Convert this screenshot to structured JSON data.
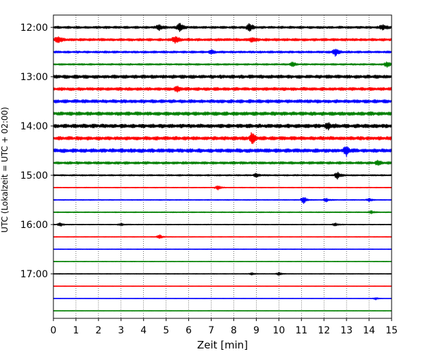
{
  "chart_data": {
    "type": "line",
    "title": "",
    "xlabel": "Zeit  [min]",
    "ylabel": "UTC (Lokalzeit = UTC + 02:00)",
    "xlim": [
      0,
      15
    ],
    "x_ticks": [
      "0",
      "1",
      "2",
      "3",
      "4",
      "5",
      "6",
      "7",
      "8",
      "9",
      "10",
      "11",
      "12",
      "13",
      "14",
      "15"
    ],
    "y_ticks": [
      "12:00",
      "13:00",
      "14:00",
      "15:00",
      "16:00",
      "17:00"
    ],
    "grid": "vertical dotted",
    "trace_interval_min": 15,
    "colors": [
      "#000000",
      "#ff0000",
      "#0000ff",
      "#008000"
    ],
    "traces": [
      {
        "start": "12:00",
        "color": "#000000",
        "amp": 0.2,
        "events": [
          {
            "t": 4.7,
            "a": 0.45
          },
          {
            "t": 5.6,
            "a": 0.65
          },
          {
            "t": 8.7,
            "a": 0.65
          },
          {
            "t": 14.6,
            "a": 0.4
          }
        ]
      },
      {
        "start": "12:15",
        "color": "#ff0000",
        "amp": 0.22,
        "events": [
          {
            "t": 0.2,
            "a": 0.5
          },
          {
            "t": 5.4,
            "a": 0.6
          },
          {
            "t": 8.8,
            "a": 0.35
          }
        ]
      },
      {
        "start": "12:30",
        "color": "#0000ff",
        "amp": 0.18,
        "events": [
          {
            "t": 7.0,
            "a": 0.3
          },
          {
            "t": 12.5,
            "a": 0.6
          }
        ]
      },
      {
        "start": "12:45",
        "color": "#008000",
        "amp": 0.14,
        "events": [
          {
            "t": 10.6,
            "a": 0.35
          },
          {
            "t": 14.8,
            "a": 0.45
          }
        ]
      },
      {
        "start": "13:00",
        "color": "#000000",
        "amp": 0.28,
        "events": []
      },
      {
        "start": "13:15",
        "color": "#ff0000",
        "amp": 0.26,
        "events": [
          {
            "t": 5.5,
            "a": 0.4
          }
        ]
      },
      {
        "start": "13:30",
        "color": "#0000ff",
        "amp": 0.28,
        "events": []
      },
      {
        "start": "13:45",
        "color": "#008000",
        "amp": 0.3,
        "events": []
      },
      {
        "start": "14:00",
        "color": "#000000",
        "amp": 0.32,
        "events": [
          {
            "t": 12.2,
            "a": 0.5
          }
        ]
      },
      {
        "start": "14:15",
        "color": "#ff0000",
        "amp": 0.3,
        "events": [
          {
            "t": 8.8,
            "a": 0.9
          }
        ]
      },
      {
        "start": "14:30",
        "color": "#0000ff",
        "amp": 0.32,
        "events": [
          {
            "t": 13.0,
            "a": 0.65
          }
        ]
      },
      {
        "start": "14:45",
        "color": "#008000",
        "amp": 0.22,
        "events": [
          {
            "t": 14.4,
            "a": 0.35
          }
        ]
      },
      {
        "start": "15:00",
        "color": "#000000",
        "amp": 0.12,
        "events": [
          {
            "t": 9.0,
            "a": 0.3
          },
          {
            "t": 12.6,
            "a": 0.55
          }
        ]
      },
      {
        "start": "15:15",
        "color": "#ff0000",
        "amp": 0.06,
        "events": [
          {
            "t": 7.3,
            "a": 0.35
          }
        ]
      },
      {
        "start": "15:30",
        "color": "#0000ff",
        "amp": 0.07,
        "events": [
          {
            "t": 11.1,
            "a": 0.6
          },
          {
            "t": 12.1,
            "a": 0.3
          },
          {
            "t": 14.0,
            "a": 0.25
          }
        ]
      },
      {
        "start": "15:45",
        "color": "#008000",
        "amp": 0.07,
        "events": [
          {
            "t": 14.1,
            "a": 0.25
          }
        ]
      },
      {
        "start": "16:00",
        "color": "#000000",
        "amp": 0.06,
        "events": [
          {
            "t": 0.3,
            "a": 0.3
          },
          {
            "t": 3.0,
            "a": 0.2
          },
          {
            "t": 12.5,
            "a": 0.25
          }
        ]
      },
      {
        "start": "16:15",
        "color": "#ff0000",
        "amp": 0.04,
        "events": [
          {
            "t": 4.7,
            "a": 0.4
          }
        ]
      },
      {
        "start": "16:30",
        "color": "#0000ff",
        "amp": 0.04,
        "events": []
      },
      {
        "start": "16:45",
        "color": "#008000",
        "amp": 0.04,
        "events": []
      },
      {
        "start": "17:00",
        "color": "#000000",
        "amp": 0.04,
        "events": [
          {
            "t": 8.8,
            "a": 0.2
          },
          {
            "t": 10.0,
            "a": 0.25
          }
        ]
      },
      {
        "start": "17:15",
        "color": "#ff0000",
        "amp": 0.03,
        "events": []
      },
      {
        "start": "17:30",
        "color": "#0000ff",
        "amp": 0.03,
        "events": [
          {
            "t": 14.3,
            "a": 0.2
          }
        ]
      },
      {
        "start": "17:45",
        "color": "#008000",
        "amp": 0.03,
        "events": []
      }
    ]
  }
}
